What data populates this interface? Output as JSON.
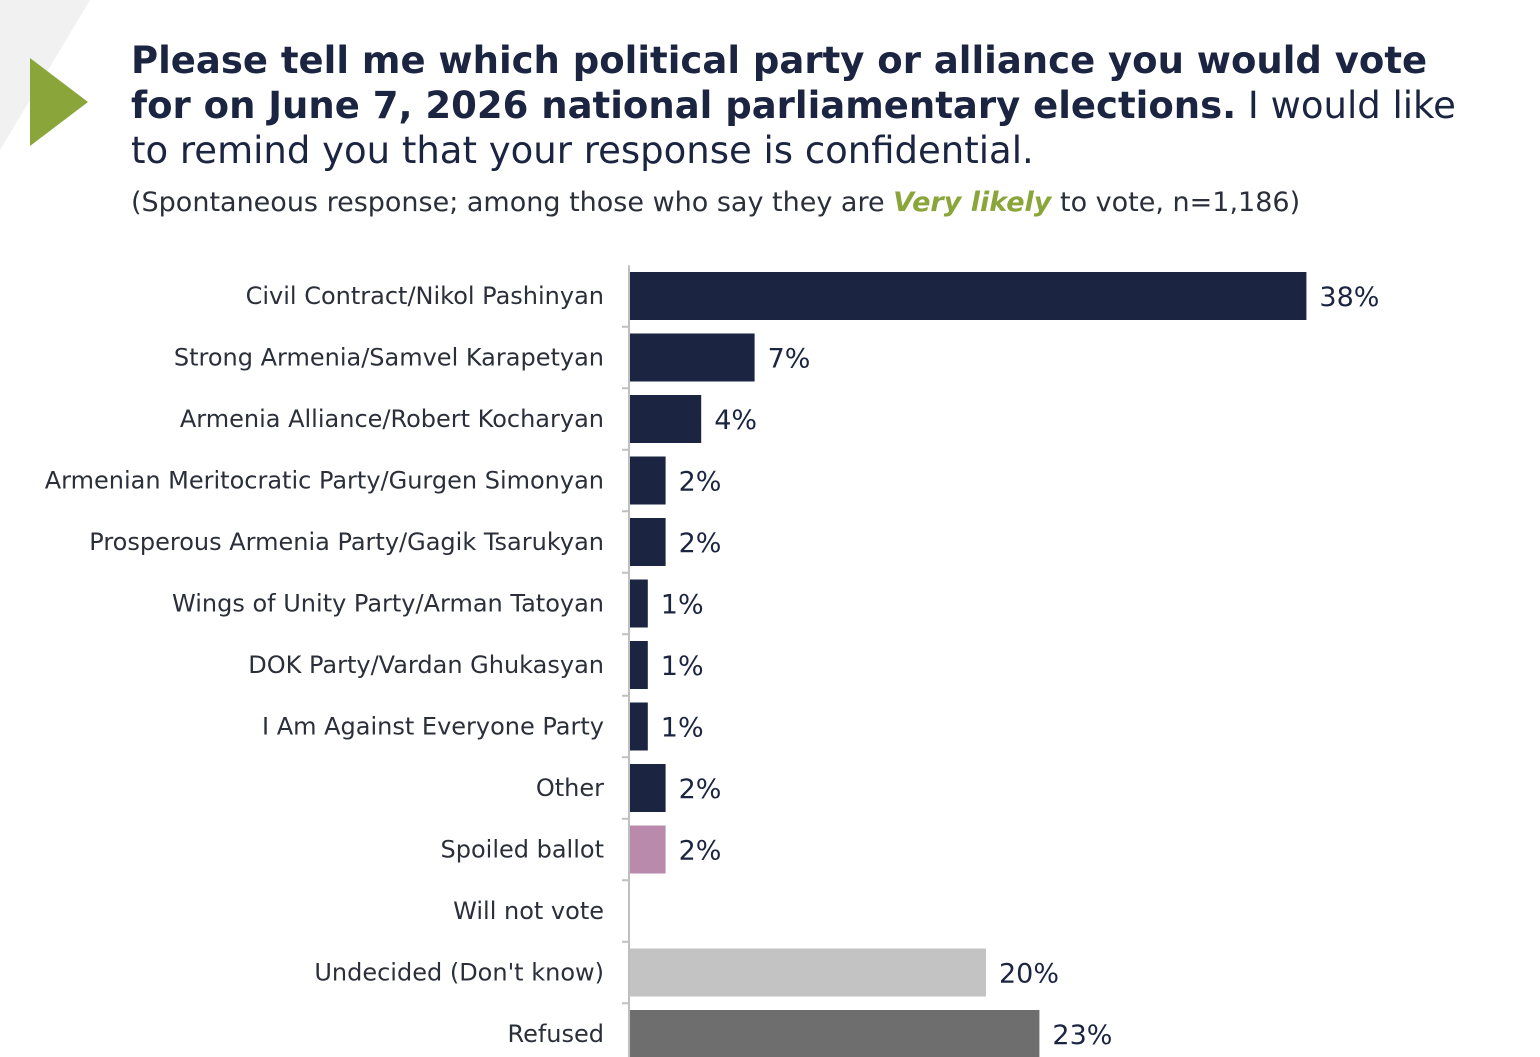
{
  "colors": {
    "accent": "#8aa53a",
    "bar_primary": "#1b2440",
    "bar_spoiled": "#b98aab",
    "bar_undecided": "#c3c3c3",
    "bar_refused": "#6e6e6e",
    "axis": "#bfbfbf"
  },
  "header": {
    "title_bold": "Please tell me which political party or alliance you would vote for on June 7, 2026 national parliamentary elections.",
    "title_normal": " I would like to remind you that your response is confidential.",
    "subtitle_before": "(Spontaneous response; among those who say they are ",
    "subtitle_emphasis": "Very likely",
    "subtitle_after": " to vote, n=1,186)"
  },
  "chart_data": {
    "type": "bar",
    "orientation": "horizontal",
    "categories": [
      "Civil Contract/Nikol Pashinyan",
      "Strong Armenia/Samvel Karapetyan",
      "Armenia Alliance/Robert Kocharyan",
      "Armenian Meritocratic Party/Gurgen Simonyan",
      "Prosperous Armenia Party/Gagik Tsarukyan",
      "Wings of Unity Party/Arman Tatoyan",
      "DOK Party/Vardan Ghukasyan",
      "I Am Against Everyone Party",
      "Other",
      "Spoiled ballot",
      "Will not vote",
      "Undecided (Don't know)",
      "Refused"
    ],
    "values": [
      38,
      7,
      4,
      2,
      2,
      1,
      1,
      1,
      2,
      2,
      0,
      20,
      23
    ],
    "value_labels": [
      "38%",
      "7%",
      "4%",
      "2%",
      "2%",
      "1%",
      "1%",
      "1%",
      "2%",
      "2%",
      "",
      "20%",
      "23%"
    ],
    "bar_color_keys": [
      "bar_primary",
      "bar_primary",
      "bar_primary",
      "bar_primary",
      "bar_primary",
      "bar_primary",
      "bar_primary",
      "bar_primary",
      "bar_primary",
      "bar_spoiled",
      "bar_primary",
      "bar_undecided",
      "bar_refused"
    ],
    "unit": "%",
    "grid": false,
    "legend": "none"
  }
}
